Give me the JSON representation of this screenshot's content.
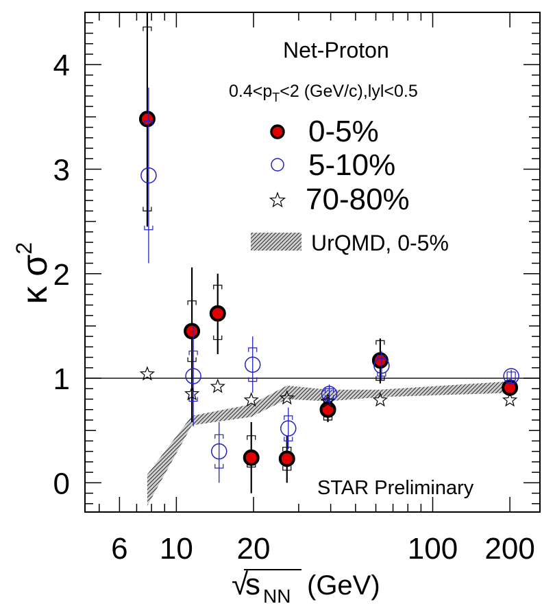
{
  "chart_data": {
    "type": "scatter",
    "title": "Net-Proton",
    "subtitle_parts": {
      "a": "0.4<p",
      "a_sub": "T",
      "b": "<2 (GeV/c),lyl<0.5"
    },
    "ylabel": {
      "base": "κ σ",
      "sup": "2"
    },
    "xlabel": {
      "root": "√",
      "s": "s",
      "sub": "NN",
      "unit": "(GeV)"
    },
    "annotation": "STAR Preliminary",
    "x_scale": "log",
    "xlim": [
      4.4,
      262
    ],
    "ylim": [
      -0.28,
      4.5
    ],
    "reference_line_y": 1,
    "x_tick_labels": [
      {
        "value": 6,
        "label": "6"
      },
      {
        "value": 10,
        "label": "10"
      },
      {
        "value": 20,
        "label": "20"
      },
      {
        "value": 100,
        "label": "100"
      },
      {
        "value": 200,
        "label": "200"
      }
    ],
    "y_tick_labels": [
      {
        "value": 0,
        "label": "0"
      },
      {
        "value": 1,
        "label": "1"
      },
      {
        "value": 2,
        "label": "2"
      },
      {
        "value": 3,
        "label": "3"
      },
      {
        "value": 4,
        "label": "4"
      }
    ],
    "series": [
      {
        "name": "0-5%",
        "marker": "filled-circle",
        "color": "#e00000",
        "edge": "#000000",
        "points": [
          {
            "x": 7.7,
            "y": 3.48,
            "stat": [
              2.45,
              4.5
            ],
            "sys": [
              2.6,
              4.36
            ]
          },
          {
            "x": 11.5,
            "y": 1.45,
            "stat": [
              0.58,
              2.06
            ],
            "sys": [
              1.16,
              1.74
            ]
          },
          {
            "x": 14.5,
            "y": 1.62,
            "stat": [
              1.23,
              2.0
            ],
            "sys": [
              1.37,
              1.89
            ]
          },
          {
            "x": 19.6,
            "y": 0.24,
            "stat": [
              -0.1,
              0.58
            ],
            "sys": [
              0.15,
              0.45
            ]
          },
          {
            "x": 27,
            "y": 0.23,
            "stat": [
              0.0,
              0.45
            ],
            "sys": [
              0.12,
              0.34
            ]
          },
          {
            "x": 39,
            "y": 0.7,
            "stat": [
              0.58,
              0.82
            ],
            "sys": [
              0.6,
              0.8
            ]
          },
          {
            "x": 62.4,
            "y": 1.17,
            "stat": [
              0.95,
              1.38
            ],
            "sys": [
              0.98,
              1.36
            ]
          },
          {
            "x": 200,
            "y": 0.91,
            "stat": [
              0.83,
              0.99
            ],
            "sys": [
              0.86,
              0.96
            ]
          }
        ]
      },
      {
        "name": "5-10%",
        "marker": "open-circle",
        "color": "#2020c8",
        "points": [
          {
            "x": 7.7,
            "y": 2.94,
            "stat": [
              2.1,
              3.78
            ],
            "sys": [
              2.42,
              3.46
            ]
          },
          {
            "x": 11.5,
            "y": 1.02,
            "stat": [
              0.54,
              1.5
            ],
            "sys": [
              0.78,
              1.26
            ]
          },
          {
            "x": 14.5,
            "y": 0.3,
            "stat": [
              0.0,
              0.58
            ],
            "sys": [
              0.14,
              0.46
            ]
          },
          {
            "x": 19.6,
            "y": 1.13,
            "stat": [
              0.86,
              1.4
            ],
            "sys": [
              0.97,
              1.29
            ]
          },
          {
            "x": 27,
            "y": 0.52,
            "stat": [
              0.32,
              0.72
            ],
            "sys": [
              0.4,
              0.64
            ]
          },
          {
            "x": 39,
            "y": 0.85,
            "stat": [
              0.76,
              0.94
            ],
            "sys": [
              0.8,
              0.9
            ]
          },
          {
            "x": 62.4,
            "y": 1.12,
            "stat": [
              0.98,
              1.26
            ],
            "sys": [
              1.02,
              1.22
            ]
          },
          {
            "x": 200,
            "y": 1.02,
            "stat": [
              0.96,
              1.08
            ],
            "sys": [
              0.98,
              1.06
            ]
          }
        ]
      },
      {
        "name": "70-80%",
        "marker": "open-star",
        "color": "#000000",
        "points": [
          {
            "x": 7.7,
            "y": 1.04
          },
          {
            "x": 11.5,
            "y": 0.85
          },
          {
            "x": 14.5,
            "y": 0.92
          },
          {
            "x": 19.6,
            "y": 0.79
          },
          {
            "x": 27,
            "y": 0.81
          },
          {
            "x": 39,
            "y": 0.78
          },
          {
            "x": 62.4,
            "y": 0.79
          },
          {
            "x": 200,
            "y": 0.79
          }
        ]
      }
    ],
    "band": {
      "name": "UrQMD, 0-5%",
      "color": "#555555",
      "x": [
        7.7,
        11.5,
        19.6,
        27,
        39,
        62.4,
        200
      ],
      "y_low": [
        -0.22,
        0.55,
        0.63,
        0.8,
        0.78,
        0.82,
        0.86
      ],
      "y_high": [
        0.08,
        0.64,
        0.75,
        0.93,
        0.89,
        0.89,
        0.97
      ]
    }
  }
}
